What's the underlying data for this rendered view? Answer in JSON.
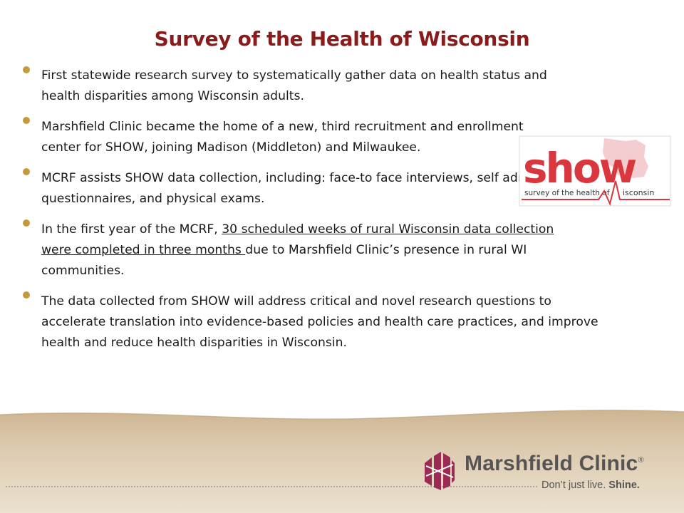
{
  "slide": {
    "title": "Survey of the Health of Wisconsin",
    "bullets": [
      {
        "text": "First statewide research survey to systematically gather data on health status and health disparities among Wisconsin adults."
      },
      {
        "text": "Marshfield Clinic became the home of a new, third recruitment and enrollment center for SHOW, joining Madison (Middleton) and Milwaukee."
      },
      {
        "text": "MCRF assists SHOW data collection, including: face-to face interviews, self administered questionnaires, and physical exams."
      },
      {
        "before": "In the first year of the MCRF, ",
        "underlined": "30 scheduled weeks of rural Wisconsin data collection were completed in three months ",
        "after": "due to Marshfield Clinic’s presence in rural WI communities."
      },
      {
        "text": "The data collected from SHOW will address critical and novel research questions to accelerate translation into evidence-based policies and health care practices, and improve health and reduce health disparities in Wisconsin."
      }
    ]
  },
  "show_logo": {
    "word": "show",
    "subtitle": "survey of the health of",
    "suffix": "isconsin"
  },
  "footer": {
    "brand_name": "Marshfield Clinic",
    "registered_mark": "®",
    "tagline_plain": "Don’t just live.",
    "tagline_bold": "Shine."
  },
  "colors": {
    "title": "#8b1a1a",
    "bullet_dot": "#c69a3c",
    "show_red": "#d9363e",
    "band": "#d7c3a6",
    "brand_mark": "#9b2b55"
  }
}
